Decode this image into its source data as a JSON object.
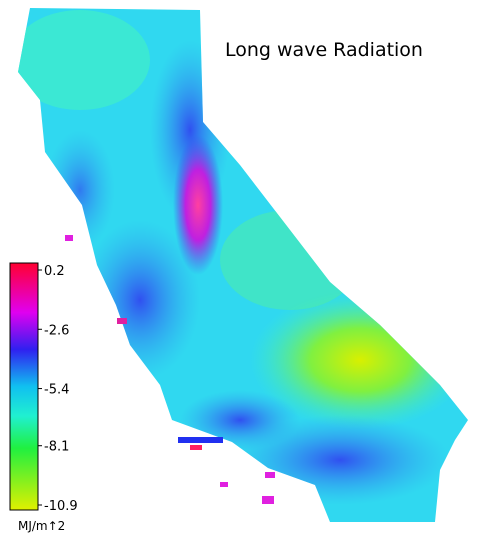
{
  "title": "Long wave Radiation",
  "colorbar": {
    "range": [
      -10.9,
      0.2
    ],
    "ticks": [
      0.2,
      -2.6,
      -5.4,
      -8.1,
      -10.9
    ],
    "unit": "MJ/m↑2"
  }
}
